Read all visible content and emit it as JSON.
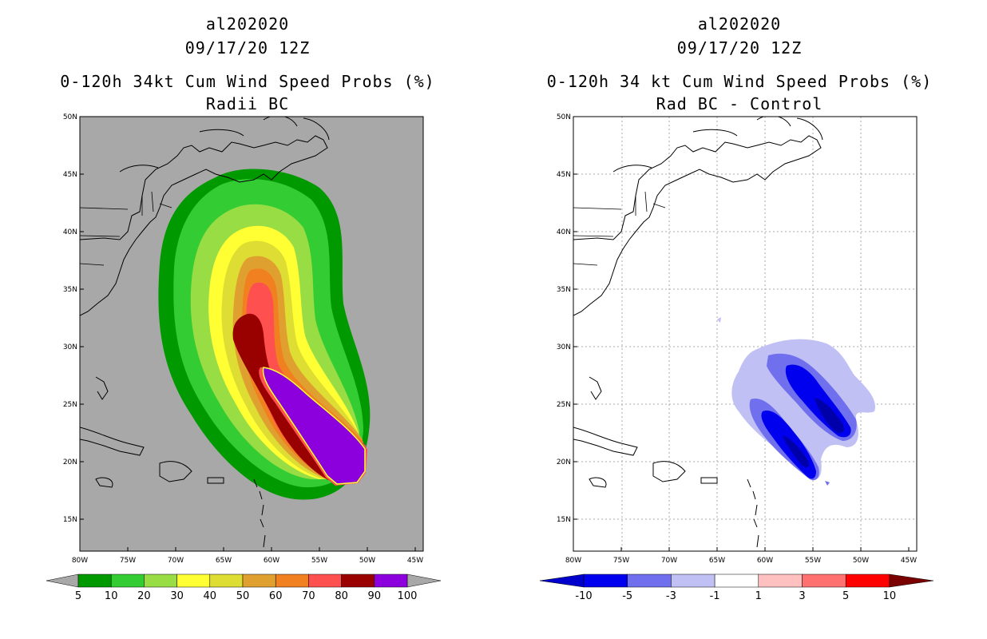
{
  "left": {
    "line1": "al202020",
    "line2": "09/17/20 12Z",
    "line3": "0-120h 34kt Cum Wind Speed Probs (%)",
    "line4": "Radii BC",
    "background": "#a8a8a8",
    "colorbar": {
      "labels": [
        "5",
        "10",
        "20",
        "30",
        "40",
        "50",
        "60",
        "70",
        "80",
        "90",
        "100"
      ],
      "colors": [
        "#009900",
        "#33cc33",
        "#99dd44",
        "#ffff33",
        "#dddd33",
        "#e0a030",
        "#f08020",
        "#ff5050",
        "#990000",
        "#8c00dd"
      ]
    }
  },
  "right": {
    "line1": "al202020",
    "line2": "09/17/20 12Z",
    "line3": "0-120h 34 kt Cum Wind Speed Probs (%)",
    "line4": "Rad BC - Control",
    "background": "#ffffff",
    "colorbar": {
      "labels": [
        "-10",
        "-5",
        "-3",
        "-1",
        "1",
        "3",
        "5",
        "10"
      ],
      "colors": [
        "#0000cc",
        "#0000ee",
        "#7070ee",
        "#c0c0f4",
        "#ffffff",
        "#ffc0c0",
        "#ff7070",
        "#ff0000",
        "#7a0000"
      ]
    }
  },
  "axes": {
    "lat_labels": [
      "50N",
      "45N",
      "40N",
      "35N",
      "30N",
      "25N",
      "20N",
      "15N"
    ],
    "lon_labels": [
      "80W",
      "75W",
      "70W",
      "65W",
      "60W",
      "55W",
      "50W",
      "45W"
    ]
  }
}
